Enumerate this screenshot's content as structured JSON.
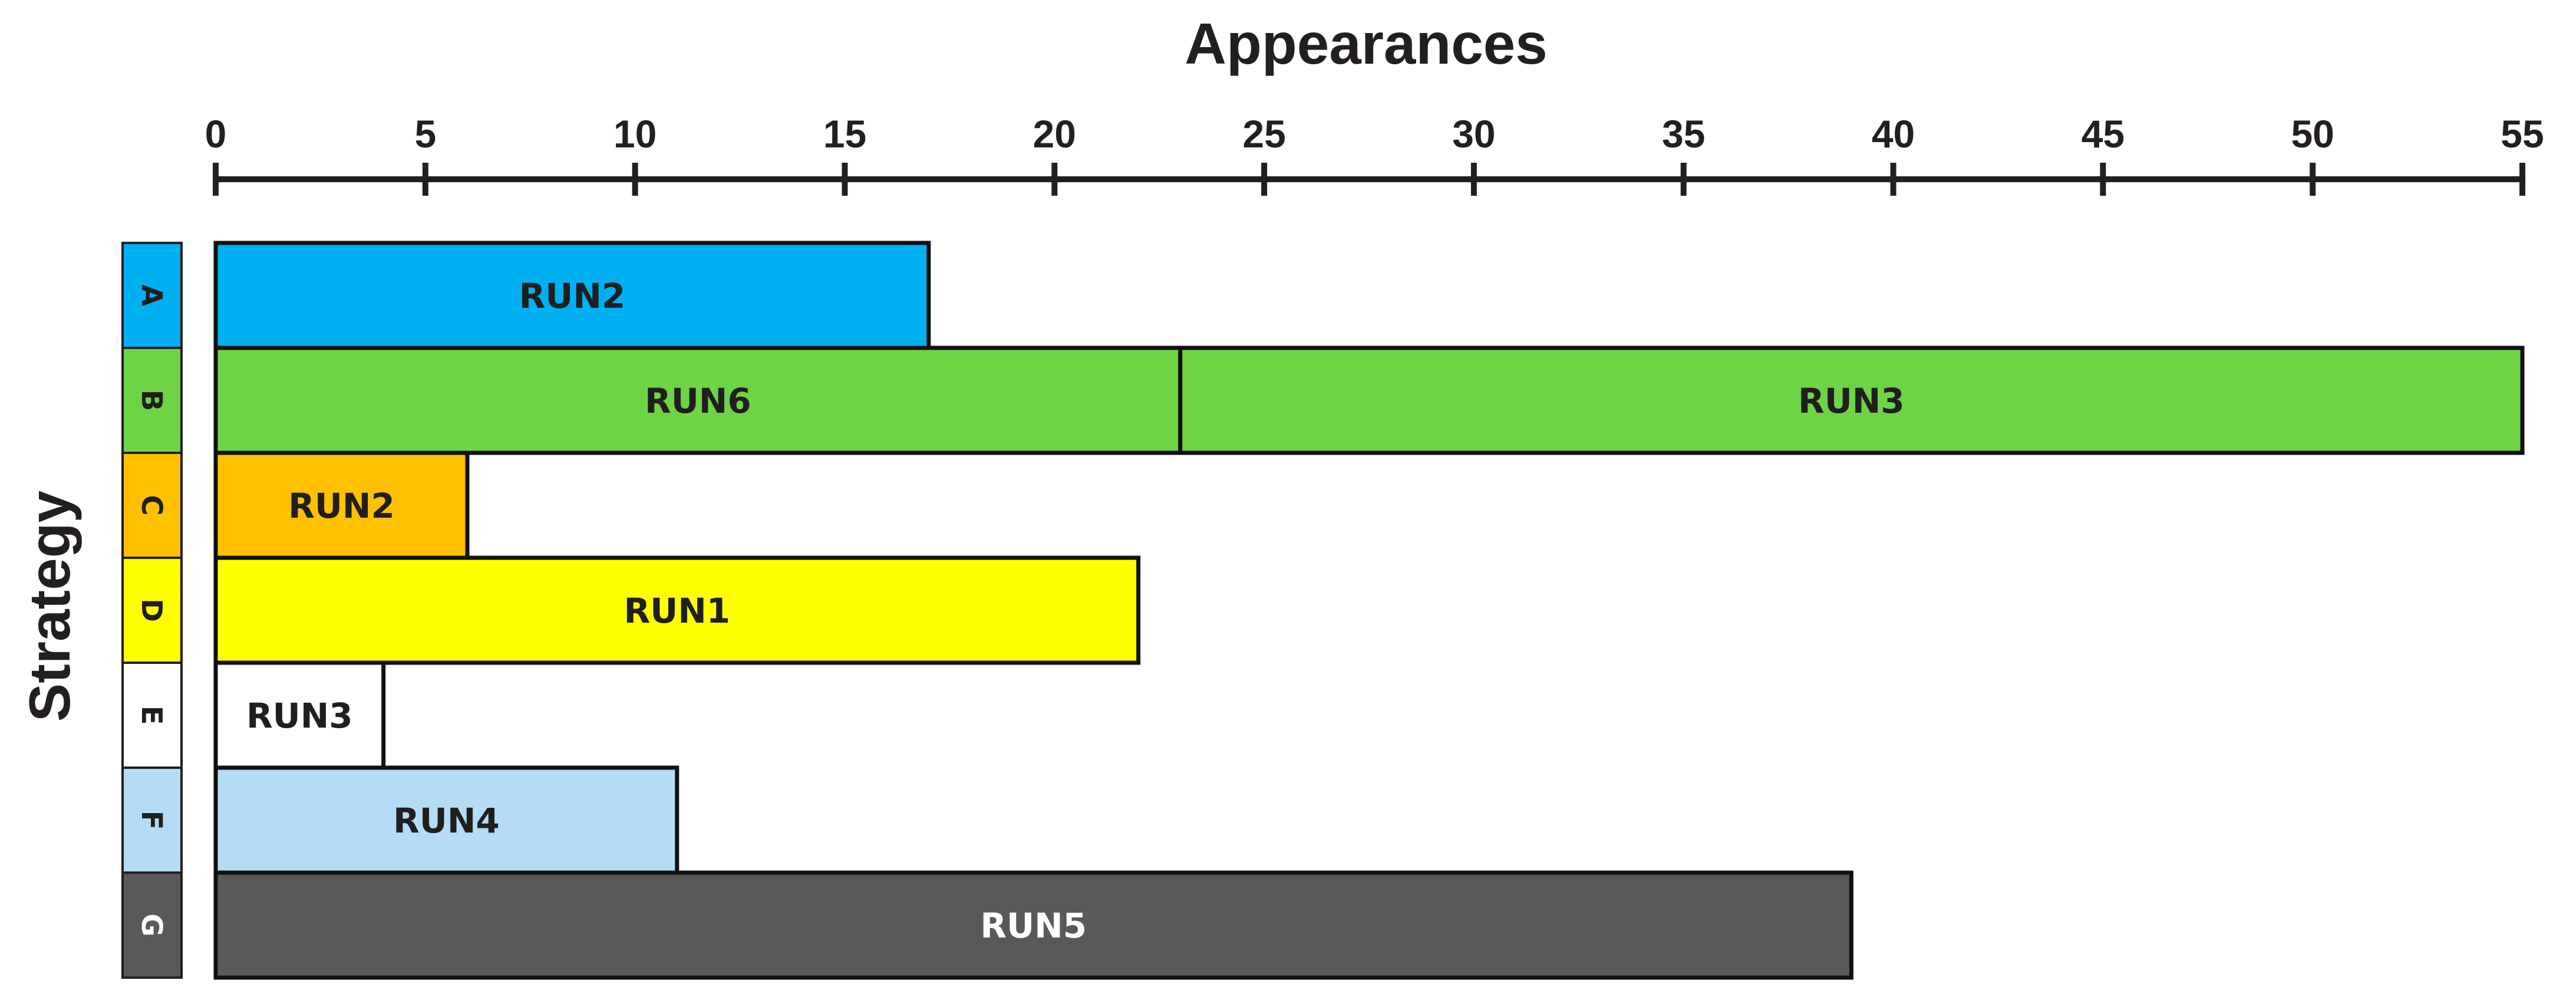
{
  "chart_data": {
    "type": "bar",
    "orientation": "horizontal",
    "stacked": true,
    "xlabel": "Appearances",
    "ylabel": "Strategy",
    "xlim": [
      0,
      55
    ],
    "xticks": [
      0,
      5,
      10,
      15,
      20,
      25,
      30,
      35,
      40,
      45,
      50,
      55
    ],
    "grid": false,
    "legend": "none",
    "categories": [
      {
        "label": "A",
        "color": "#00b0f0",
        "text_color": "#1f1f1f"
      },
      {
        "label": "B",
        "color": "#6fd445",
        "text_color": "#1f1f1f"
      },
      {
        "label": "C",
        "color": "#ffc000",
        "text_color": "#1f1f1f"
      },
      {
        "label": "D",
        "color": "#ffff00",
        "text_color": "#1f1f1f"
      },
      {
        "label": "E",
        "color": "#ffffff",
        "text_color": "#1f1f1f"
      },
      {
        "label": "F",
        "color": "#b4dcf5",
        "text_color": "#1f1f1f"
      },
      {
        "label": "G",
        "color": "#595959",
        "text_color": "#ffffff"
      }
    ],
    "bars": [
      {
        "category": "A",
        "segments": [
          {
            "label": "RUN2",
            "value": 17
          }
        ]
      },
      {
        "category": "B",
        "segments": [
          {
            "label": "RUN6",
            "value": 23
          },
          {
            "label": "RUN3",
            "value": 32
          }
        ]
      },
      {
        "category": "C",
        "segments": [
          {
            "label": "RUN2",
            "value": 6
          }
        ]
      },
      {
        "category": "D",
        "segments": [
          {
            "label": "RUN1",
            "value": 22
          }
        ]
      },
      {
        "category": "E",
        "segments": [
          {
            "label": "RUN3",
            "value": 4
          }
        ]
      },
      {
        "category": "F",
        "segments": [
          {
            "label": "RUN4",
            "value": 11
          }
        ]
      },
      {
        "category": "G",
        "segments": [
          {
            "label": "RUN5",
            "value": 39
          }
        ]
      }
    ]
  }
}
